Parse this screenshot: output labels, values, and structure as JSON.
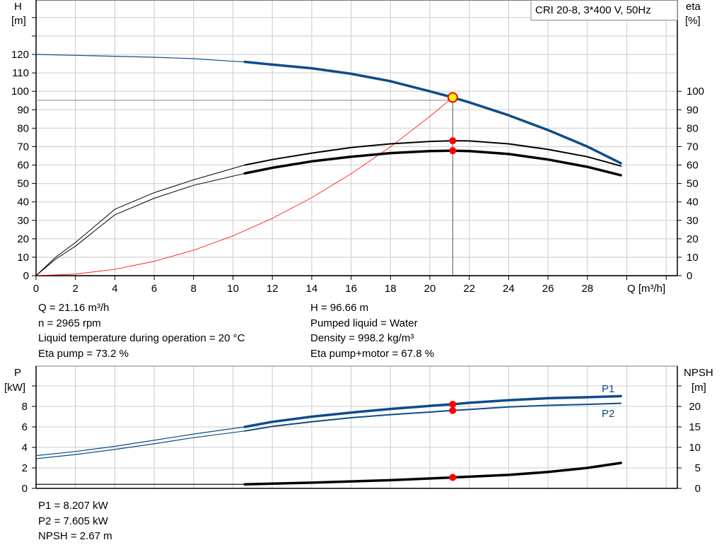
{
  "chart_data": [
    {
      "type": "line",
      "title": "CRI 20-8, 3*400 V, 50Hz",
      "xlabel": "Q [m³/h]",
      "ylabel": "H\n[m]",
      "ylabel_left": {
        "name": "H",
        "unit": "[m]"
      },
      "ylabel_right": {
        "name": "eta",
        "unit": "[%]"
      },
      "xlim": [
        0,
        32
      ],
      "ylim": [
        0,
        150
      ],
      "y2lim": [
        0,
        150
      ],
      "grid": true,
      "xticks": [
        "0",
        "2",
        "4",
        "6",
        "8",
        "10",
        "12",
        "14",
        "16",
        "18",
        "20",
        "22",
        "24",
        "26",
        "28"
      ],
      "yticks": [
        "0",
        "10",
        "20",
        "30",
        "40",
        "50",
        "60",
        "70",
        "80",
        "90",
        "100",
        "110",
        "120"
      ],
      "y2ticks": [
        "0",
        "10",
        "20",
        "30",
        "40",
        "50",
        "60",
        "70",
        "80",
        "90",
        "100"
      ],
      "series": [
        {
          "id": "H",
          "color": "#0f4c8a",
          "axis": "left",
          "x": [
            0,
            2,
            4,
            6,
            8,
            10,
            10.6,
            12,
            14,
            16,
            18,
            20,
            21.16,
            22,
            24,
            26,
            28,
            29.7
          ],
          "y": [
            120,
            119.5,
            119,
            118.5,
            117.7,
            116.3,
            116,
            114.5,
            112.5,
            109.5,
            105.5,
            100,
            96.66,
            94,
            87,
            79,
            70,
            61
          ]
        },
        {
          "id": "eta_pump",
          "color": "#000000",
          "axis": "right",
          "x": [
            0,
            1,
            2,
            4,
            6,
            8,
            10.6,
            12,
            14,
            16,
            18,
            20,
            21.16,
            22,
            24,
            26,
            28,
            29.7
          ],
          "y": [
            0,
            10,
            18,
            36,
            45,
            52,
            60,
            63,
            66.5,
            69.5,
            71.5,
            72.8,
            73.2,
            73.1,
            71.5,
            68.5,
            64.5,
            59.5
          ]
        },
        {
          "id": "eta_pump_motor",
          "color": "#000000",
          "axis": "right",
          "x": [
            0,
            1,
            2,
            4,
            6,
            8,
            10.6,
            12,
            14,
            16,
            18,
            20,
            21.16,
            22,
            24,
            26,
            28,
            29.7
          ],
          "y": [
            0,
            9,
            16,
            33,
            42,
            49,
            55.5,
            58.5,
            62,
            64.5,
            66.5,
            67.6,
            67.8,
            67.6,
            66,
            63,
            59,
            54.5
          ]
        },
        {
          "id": "system",
          "color": "#ff0000",
          "axis": "left",
          "x": [
            0,
            2,
            4,
            6,
            8,
            10,
            12,
            14,
            16,
            18,
            20,
            21.16
          ],
          "y": [
            0,
            0.86,
            3.45,
            7.77,
            13.8,
            21.6,
            31.1,
            42.3,
            55.3,
            69.9,
            86.4,
            96.66
          ]
        }
      ],
      "duty_point": {
        "Q": 21.16,
        "H": 96.66,
        "eta_pump": 73.2,
        "eta_pump_motor": 67.8
      }
    },
    {
      "type": "line",
      "ylabel_left": {
        "name": "P",
        "unit": "[kW]"
      },
      "ylabel_right": {
        "name": "NPSH",
        "unit": "[m]"
      },
      "xlim": [
        0,
        32
      ],
      "ylim": [
        0,
        11.9
      ],
      "y2lim": [
        0,
        29.75
      ],
      "grid": true,
      "yticks": [
        "0",
        "2",
        "4",
        "6",
        "8"
      ],
      "y2ticks": [
        "0",
        "5",
        "10",
        "15",
        "20"
      ],
      "series": [
        {
          "id": "P1",
          "name": "P1",
          "color": "#0f4c8a",
          "axis": "left",
          "x": [
            0,
            2,
            4,
            6,
            8,
            10.6,
            12,
            14,
            16,
            18,
            20,
            21.16,
            22,
            24,
            26,
            28,
            29.7
          ],
          "y": [
            3.2,
            3.6,
            4.1,
            4.7,
            5.3,
            6.0,
            6.5,
            7.0,
            7.4,
            7.75,
            8.05,
            8.207,
            8.35,
            8.6,
            8.8,
            8.9,
            9.0
          ]
        },
        {
          "id": "P2",
          "name": "P2",
          "color": "#0f4c8a",
          "axis": "left",
          "x": [
            0,
            2,
            4,
            6,
            8,
            10.6,
            12,
            14,
            16,
            18,
            20,
            21.16,
            22,
            24,
            26,
            28,
            29.7
          ],
          "y": [
            2.9,
            3.3,
            3.8,
            4.35,
            4.95,
            5.6,
            6.05,
            6.5,
            6.9,
            7.2,
            7.45,
            7.605,
            7.7,
            7.95,
            8.1,
            8.2,
            8.3
          ]
        },
        {
          "id": "NPSH",
          "color": "#000000",
          "axis": "right",
          "x": [
            0,
            10.6,
            14,
            18,
            21.16,
            24,
            26,
            28,
            29.7
          ],
          "y": [
            1.0,
            1.0,
            1.4,
            2.0,
            2.67,
            3.3,
            4.0,
            5.0,
            6.2
          ]
        }
      ],
      "duty_point": {
        "Q": 21.16,
        "P1": 8.207,
        "P2": 7.605,
        "NPSH": 2.67
      }
    }
  ],
  "info_top_left": [
    "Q = 21.16 m³/h",
    "n = 2965 rpm",
    "Liquid temperature during operation = 20 °C",
    "Eta pump = 73.2 %"
  ],
  "info_top_right": [
    "H = 96.66 m",
    "Pumped liquid = Water",
    "Density = 998.2 kg/m³",
    "Eta pump+motor = 67.8 %"
  ],
  "info_bottom": [
    "P1 = 8.207 kW",
    "P2 = 7.605 kW",
    "NPSH = 2.67 m"
  ]
}
